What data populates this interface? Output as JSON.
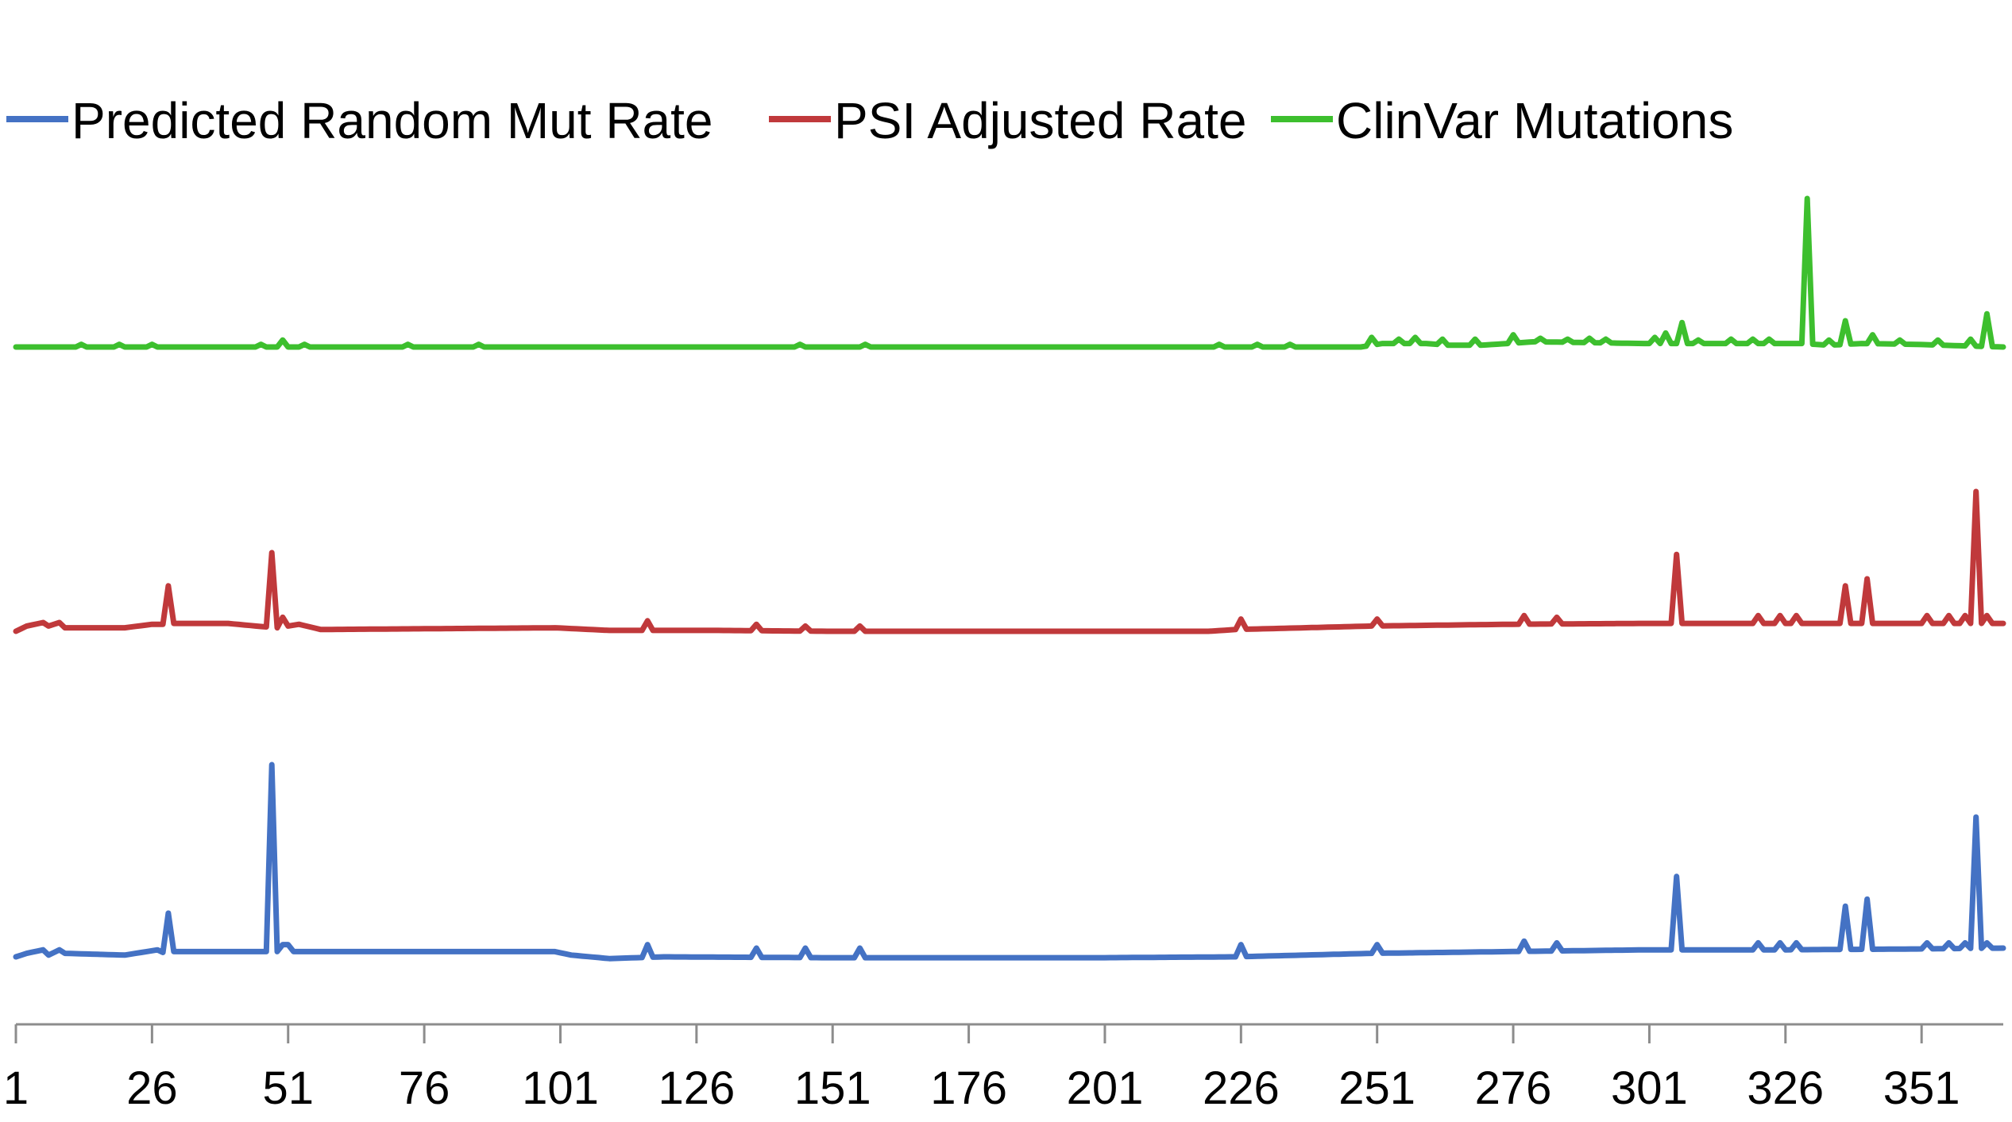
{
  "chart_data": {
    "type": "line",
    "x": {
      "start": 1,
      "end": 366
    },
    "x_tick_labels": [
      "1",
      "26",
      "51",
      "76",
      "101",
      "126",
      "151",
      "176",
      "201",
      "226",
      "251",
      "276",
      "301",
      "326",
      "351"
    ],
    "y_axis_visible": false,
    "grid": false,
    "legend_position": "top-left",
    "series": [
      {
        "name": "Predicted Random Mut Rate",
        "color": "#4472c4",
        "baseline_segments": [
          [
            1,
            0.0
          ],
          [
            3,
            0.2
          ],
          [
            6,
            0.4
          ],
          [
            7,
            0.1
          ],
          [
            9,
            0.4
          ],
          [
            10,
            0.2
          ],
          [
            21,
            0.1
          ],
          [
            26,
            0.35
          ],
          [
            27,
            0.4
          ],
          [
            28,
            0.25
          ],
          [
            30,
            0.3
          ],
          [
            33,
            0.3
          ],
          [
            36,
            0.3
          ],
          [
            100,
            0.3
          ],
          [
            103,
            0.1
          ],
          [
            110,
            -0.1
          ],
          [
            120,
            0.0
          ],
          [
            150,
            -0.05
          ],
          [
            200,
            -0.05
          ],
          [
            225,
            0.0
          ],
          [
            250,
            0.2
          ],
          [
            275,
            0.3
          ],
          [
            300,
            0.4
          ],
          [
            325,
            0.4
          ],
          [
            350,
            0.45
          ],
          [
            366,
            0.5
          ]
        ],
        "spikes": [
          [
            29,
            2.5
          ],
          [
            48,
            11.0
          ],
          [
            50,
            0.7
          ],
          [
            51,
            0.7
          ],
          [
            117,
            0.7
          ],
          [
            137,
            0.5
          ],
          [
            146,
            0.5
          ],
          [
            156,
            0.5
          ],
          [
            226,
            0.7
          ],
          [
            251,
            0.7
          ],
          [
            278,
            0.9
          ],
          [
            284,
            0.8
          ],
          [
            306,
            4.6
          ],
          [
            321,
            0.8
          ],
          [
            325,
            0.8
          ],
          [
            328,
            0.8
          ],
          [
            337,
            2.9
          ],
          [
            341,
            3.3
          ],
          [
            352,
            0.8
          ],
          [
            356,
            0.8
          ],
          [
            359,
            0.8
          ],
          [
            361,
            8.0
          ],
          [
            363,
            0.8
          ]
        ]
      },
      {
        "name": "PSI Adjusted Rate",
        "color": "#c0393b",
        "baseline_segments": [
          [
            1,
            0.0
          ],
          [
            3,
            0.3
          ],
          [
            6,
            0.5
          ],
          [
            7,
            0.3
          ],
          [
            9,
            0.5
          ],
          [
            10,
            0.2
          ],
          [
            21,
            0.2
          ],
          [
            26,
            0.4
          ],
          [
            28,
            0.4
          ],
          [
            30,
            0.45
          ],
          [
            33,
            0.45
          ],
          [
            40,
            0.45
          ],
          [
            45,
            0.3
          ],
          [
            49,
            0.2
          ],
          [
            53,
            0.4
          ],
          [
            57,
            0.1
          ],
          [
            100,
            0.2
          ],
          [
            110,
            0.05
          ],
          [
            130,
            0.05
          ],
          [
            150,
            0.0
          ],
          [
            200,
            0.0
          ],
          [
            220,
            0.0
          ],
          [
            225,
            0.1
          ],
          [
            250,
            0.3
          ],
          [
            275,
            0.4
          ],
          [
            300,
            0.45
          ],
          [
            325,
            0.45
          ],
          [
            350,
            0.45
          ],
          [
            366,
            0.45
          ]
        ],
        "spikes": [
          [
            29,
            2.6
          ],
          [
            48,
            4.5
          ],
          [
            50,
            0.8
          ],
          [
            117,
            0.6
          ],
          [
            137,
            0.4
          ],
          [
            146,
            0.3
          ],
          [
            156,
            0.3
          ],
          [
            226,
            0.7
          ],
          [
            251,
            0.7
          ],
          [
            278,
            0.9
          ],
          [
            284,
            0.8
          ],
          [
            306,
            4.4
          ],
          [
            321,
            0.9
          ],
          [
            325,
            0.9
          ],
          [
            328,
            0.9
          ],
          [
            337,
            2.6
          ],
          [
            341,
            3.0
          ],
          [
            352,
            0.9
          ],
          [
            356,
            0.9
          ],
          [
            359,
            0.9
          ],
          [
            361,
            8.0
          ],
          [
            363,
            0.9
          ]
        ]
      },
      {
        "name": "ClinVar Mutations",
        "color": "#3dbf2e",
        "baseline_segments": [
          [
            1,
            0.0
          ],
          [
            248,
            0.0
          ],
          [
            250,
            0.1
          ],
          [
            252,
            0.2
          ],
          [
            260,
            0.2
          ],
          [
            264,
            0.1
          ],
          [
            270,
            0.1
          ],
          [
            275,
            0.2
          ],
          [
            280,
            0.3
          ],
          [
            300,
            0.2
          ],
          [
            305,
            0.2
          ],
          [
            310,
            0.2
          ],
          [
            325,
            0.2
          ],
          [
            327,
            0.2
          ],
          [
            329,
            0.2
          ],
          [
            334,
            0.1
          ],
          [
            340,
            0.2
          ],
          [
            350,
            0.15
          ],
          [
            355,
            0.1
          ],
          [
            366,
            0.0
          ]
        ],
        "spikes": [
          [
            13,
            0.15
          ],
          [
            20,
            0.15
          ],
          [
            26,
            0.15
          ],
          [
            46,
            0.15
          ],
          [
            50,
            0.4
          ],
          [
            54,
            0.15
          ],
          [
            73,
            0.15
          ],
          [
            86,
            0.15
          ],
          [
            145,
            0.15
          ],
          [
            157,
            0.15
          ],
          [
            222,
            0.15
          ],
          [
            229,
            0.15
          ],
          [
            235,
            0.15
          ],
          [
            250,
            0.55
          ],
          [
            255,
            0.45
          ],
          [
            258,
            0.55
          ],
          [
            263,
            0.45
          ],
          [
            269,
            0.45
          ],
          [
            276,
            0.7
          ],
          [
            281,
            0.5
          ],
          [
            286,
            0.45
          ],
          [
            290,
            0.5
          ],
          [
            293,
            0.45
          ],
          [
            302,
            0.55
          ],
          [
            304,
            0.8
          ],
          [
            307,
            1.4
          ],
          [
            310,
            0.4
          ],
          [
            316,
            0.45
          ],
          [
            320,
            0.45
          ],
          [
            323,
            0.45
          ],
          [
            330,
            8.5
          ],
          [
            334,
            0.4
          ],
          [
            337,
            1.5
          ],
          [
            342,
            0.7
          ],
          [
            347,
            0.4
          ],
          [
            354,
            0.4
          ],
          [
            360,
            0.45
          ],
          [
            363,
            1.9
          ]
        ]
      }
    ]
  }
}
